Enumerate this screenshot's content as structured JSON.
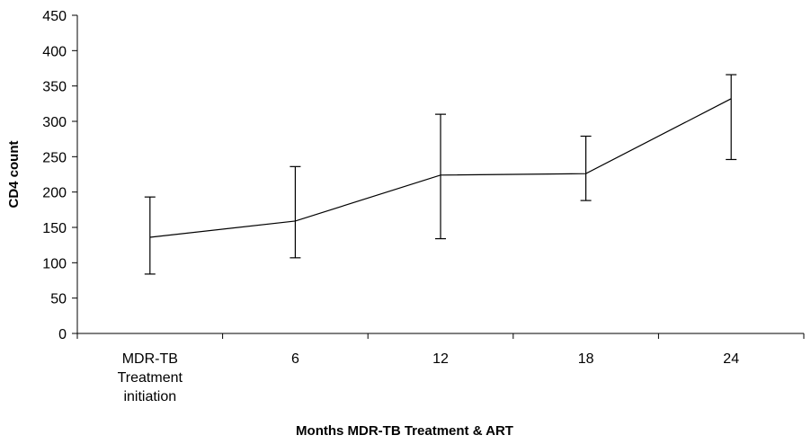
{
  "chart_data": {
    "type": "line",
    "title": "",
    "xlabel": "Months MDR-TB Treatment & ART",
    "ylabel": "CD4 count",
    "categories": [
      [
        "MDR-TB",
        "Treatment",
        "initiation"
      ],
      [
        "6"
      ],
      [
        "12"
      ],
      [
        "18"
      ],
      [
        "24"
      ]
    ],
    "ylim": [
      0,
      450
    ],
    "yticks": [
      0,
      50,
      100,
      150,
      200,
      250,
      300,
      350,
      400,
      450
    ],
    "grid": false,
    "legend": "none",
    "series": [
      {
        "values": [
          136,
          159,
          224,
          226,
          332
        ],
        "err_low": [
          84,
          107,
          134,
          188,
          246
        ],
        "err_high": [
          193,
          236,
          310,
          279,
          366
        ]
      }
    ],
    "colors": {
      "line": "#000000",
      "axis": "#000000"
    }
  }
}
